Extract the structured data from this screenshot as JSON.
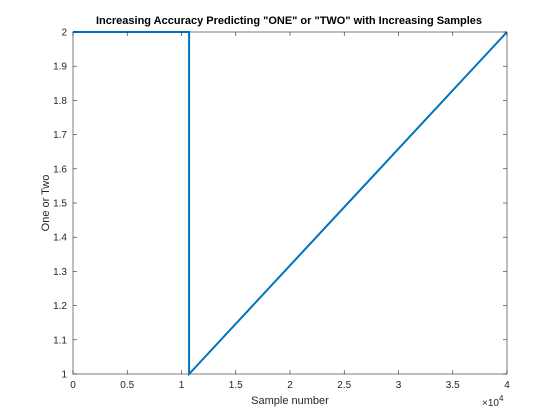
{
  "chart_data": {
    "type": "line",
    "title": "Increasing Accuracy Predicting \"ONE\" or \"TWO\" with Increasing Samples",
    "xlabel": "Sample number",
    "ylabel": "One or Two",
    "xlim": [
      0,
      40000
    ],
    "ylim": [
      1,
      2
    ],
    "x_ticks": [
      0,
      5000,
      10000,
      15000,
      20000,
      25000,
      30000,
      35000,
      40000
    ],
    "x_tick_labels": [
      "0",
      "0.5",
      "1",
      "1.5",
      "2",
      "2.5",
      "3",
      "3.5",
      "4"
    ],
    "x_exponent_label": {
      "base": "×10",
      "exp": "4"
    },
    "y_ticks": [
      1,
      1.1,
      1.2,
      1.3,
      1.4,
      1.5,
      1.6,
      1.7,
      1.8,
      1.9,
      2
    ],
    "y_tick_labels": [
      "1",
      "1.1",
      "1.2",
      "1.3",
      "1.4",
      "1.5",
      "1.6",
      "1.7",
      "1.8",
      "1.9",
      "2"
    ],
    "grid": false,
    "series": [
      {
        "color": "#0072bd",
        "x": [
          0,
          10700,
          10700,
          40000
        ],
        "y": [
          2,
          2,
          1,
          2
        ]
      }
    ]
  }
}
